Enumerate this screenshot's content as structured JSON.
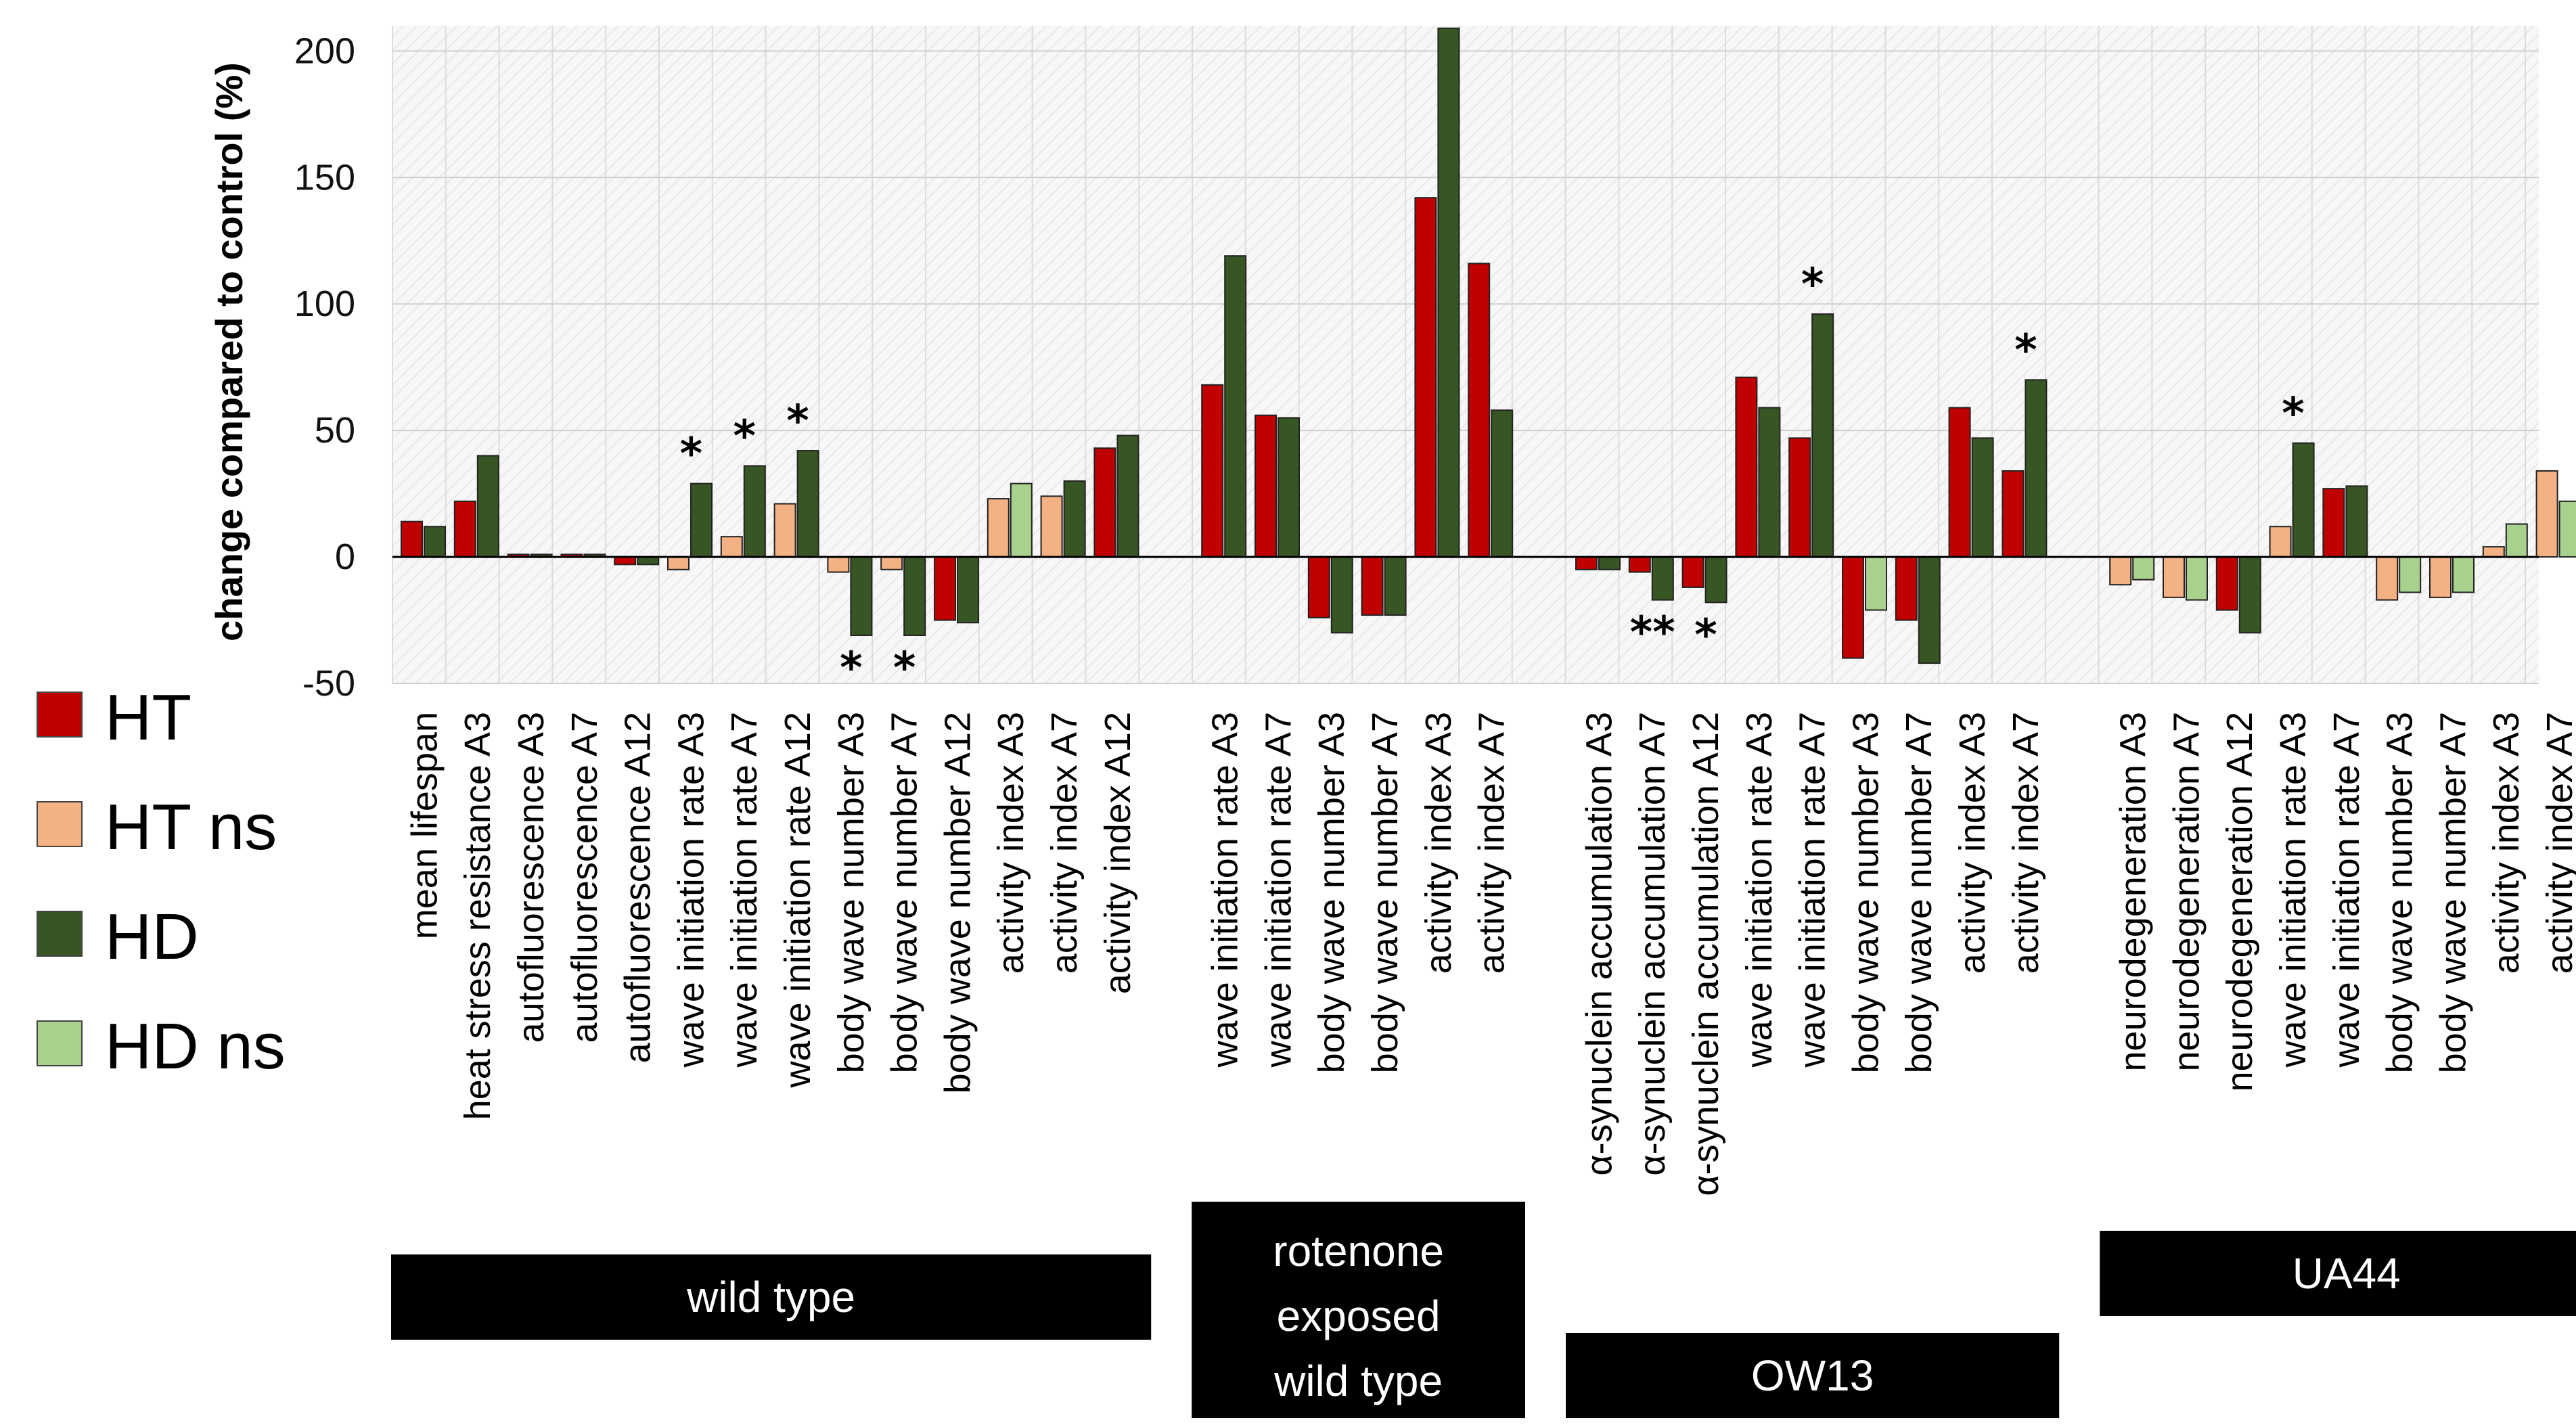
{
  "chart_data": {
    "type": "bar",
    "title": "",
    "xlabel": "",
    "ylabel": "change compared to control (%)",
    "ylim": [
      -50,
      210
    ],
    "yticks": [
      -50,
      0,
      50,
      100,
      150,
      200
    ],
    "grid": "on",
    "legend_position": "left",
    "colors": {
      "HT": "#c00000",
      "HT ns": "#f4b183",
      "HD": "#375623",
      "HD ns": "#a9d18e"
    },
    "legend": [
      {
        "label": "HT",
        "key": "HT"
      },
      {
        "label": "HT ns",
        "key": "HT ns"
      },
      {
        "label": "HD",
        "key": "HD"
      },
      {
        "label": "HD ns",
        "key": "HD ns"
      }
    ],
    "groups": [
      {
        "name": "wild type",
        "label_lines": [
          "wild type"
        ],
        "categories": [
          {
            "label": "mean lifespan",
            "ht": 14,
            "ht_sig": true,
            "hd": 12,
            "hd_sig": true,
            "stars": ""
          },
          {
            "label": "heat stress resistance A3",
            "ht": 22,
            "ht_sig": true,
            "hd": 40,
            "hd_sig": true,
            "stars": ""
          },
          {
            "label": "autofluorescence A3",
            "ht": 1,
            "ht_sig": true,
            "hd": 1,
            "hd_sig": true,
            "stars": ""
          },
          {
            "label": "autofluorescence A7",
            "ht": 1,
            "ht_sig": true,
            "hd": 1,
            "hd_sig": true,
            "stars": ""
          },
          {
            "label": "autofluorescence A12",
            "ht": -3,
            "ht_sig": true,
            "hd": -3,
            "hd_sig": true,
            "stars": ""
          },
          {
            "label": "wave initiation rate A3",
            "ht": -5,
            "ht_sig": false,
            "hd": 29,
            "hd_sig": true,
            "stars": "*"
          },
          {
            "label": "wave initiation rate A7",
            "ht": 8,
            "ht_sig": false,
            "hd": 36,
            "hd_sig": true,
            "stars": "*"
          },
          {
            "label": "wave initiation rate A12",
            "ht": 21,
            "ht_sig": false,
            "hd": 42,
            "hd_sig": true,
            "stars": "*"
          },
          {
            "label": "body wave number A3",
            "ht": -6,
            "ht_sig": false,
            "hd": -31,
            "hd_sig": true,
            "stars": "*"
          },
          {
            "label": "body wave number A7",
            "ht": -5,
            "ht_sig": false,
            "hd": -31,
            "hd_sig": true,
            "stars": "*"
          },
          {
            "label": "body wave number A12",
            "ht": -25,
            "ht_sig": true,
            "hd": -26,
            "hd_sig": true,
            "stars": ""
          },
          {
            "label": "activity index A3",
            "ht": 23,
            "ht_sig": false,
            "hd": 29,
            "hd_sig": false,
            "stars": ""
          },
          {
            "label": "activity index A7",
            "ht": 24,
            "ht_sig": false,
            "hd": 30,
            "hd_sig": true,
            "stars": ""
          },
          {
            "label": "activity index A12",
            "ht": 43,
            "ht_sig": true,
            "hd": 48,
            "hd_sig": true,
            "stars": ""
          }
        ]
      },
      {
        "name": "rotenone exposed wild type",
        "label_lines": [
          "rotenone",
          "exposed",
          "wild type"
        ],
        "categories": [
          {
            "label": "wave initiation rate A3",
            "ht": 68,
            "ht_sig": true,
            "hd": 119,
            "hd_sig": true,
            "stars": ""
          },
          {
            "label": "wave initiation rate A7",
            "ht": 56,
            "ht_sig": true,
            "hd": 55,
            "hd_sig": true,
            "stars": ""
          },
          {
            "label": "body wave number A3",
            "ht": -24,
            "ht_sig": true,
            "hd": -30,
            "hd_sig": true,
            "stars": ""
          },
          {
            "label": "body wave number A7",
            "ht": -23,
            "ht_sig": true,
            "hd": -23,
            "hd_sig": true,
            "stars": ""
          },
          {
            "label": "activity index A3",
            "ht": 142,
            "ht_sig": true,
            "hd": 209,
            "hd_sig": true,
            "stars": ""
          },
          {
            "label": "activity index A7",
            "ht": 116,
            "ht_sig": true,
            "hd": 58,
            "hd_sig": true,
            "stars": ""
          }
        ]
      },
      {
        "name": "OW13",
        "label_lines": [
          "OW13"
        ],
        "categories": [
          {
            "label": "α-synuclein accumulation A3",
            "ht": -5,
            "ht_sig": true,
            "hd": -5,
            "hd_sig": true,
            "stars": ""
          },
          {
            "label": "α-synuclein accumulation A7",
            "ht": -6,
            "ht_sig": true,
            "hd": -17,
            "hd_sig": true,
            "stars": "**"
          },
          {
            "label": "α-synuclein accumulation A12",
            "ht": -12,
            "ht_sig": true,
            "hd": -18,
            "hd_sig": true,
            "stars": "*"
          },
          {
            "label": "wave initiation rate A3",
            "ht": 71,
            "ht_sig": true,
            "hd": 59,
            "hd_sig": true,
            "stars": ""
          },
          {
            "label": "wave initiation rate A7",
            "ht": 47,
            "ht_sig": true,
            "hd": 96,
            "hd_sig": true,
            "stars": "*"
          },
          {
            "label": "body wave number A3",
            "ht": -40,
            "ht_sig": true,
            "hd": -21,
            "hd_sig": false,
            "stars": ""
          },
          {
            "label": "body wave number A7",
            "ht": -25,
            "ht_sig": true,
            "hd": -42,
            "hd_sig": true,
            "stars": ""
          },
          {
            "label": "activity index A3",
            "ht": 59,
            "ht_sig": true,
            "hd": 47,
            "hd_sig": true,
            "stars": ""
          },
          {
            "label": "activity index A7",
            "ht": 34,
            "ht_sig": true,
            "hd": 70,
            "hd_sig": true,
            "stars": "*"
          }
        ]
      },
      {
        "name": "UA44",
        "label_lines": [
          "UA44"
        ],
        "categories": [
          {
            "label": "neurodegeneration A3",
            "ht": -11,
            "ht_sig": false,
            "hd": -9,
            "hd_sig": false,
            "stars": ""
          },
          {
            "label": "neurodegeneration A7",
            "ht": -16,
            "ht_sig": false,
            "hd": -17,
            "hd_sig": false,
            "stars": ""
          },
          {
            "label": "neurodegeneration A12",
            "ht": -21,
            "ht_sig": true,
            "hd": -30,
            "hd_sig": true,
            "stars": ""
          },
          {
            "label": "wave initiation rate A3",
            "ht": 12,
            "ht_sig": false,
            "hd": 45,
            "hd_sig": true,
            "stars": "*"
          },
          {
            "label": "wave initiation rate A7",
            "ht": 27,
            "ht_sig": true,
            "hd": 28,
            "hd_sig": true,
            "stars": ""
          },
          {
            "label": "body wave number A3",
            "ht": -17,
            "ht_sig": false,
            "hd": -14,
            "hd_sig": false,
            "stars": ""
          },
          {
            "label": "body wave number A7",
            "ht": -16,
            "ht_sig": false,
            "hd": -14,
            "hd_sig": false,
            "stars": ""
          },
          {
            "label": "activity index A3",
            "ht": 4,
            "ht_sig": false,
            "hd": 13,
            "hd_sig": false,
            "stars": ""
          },
          {
            "label": "activity index A7",
            "ht": 34,
            "ht_sig": false,
            "hd": 22,
            "hd_sig": false,
            "stars": ""
          }
        ]
      }
    ]
  }
}
